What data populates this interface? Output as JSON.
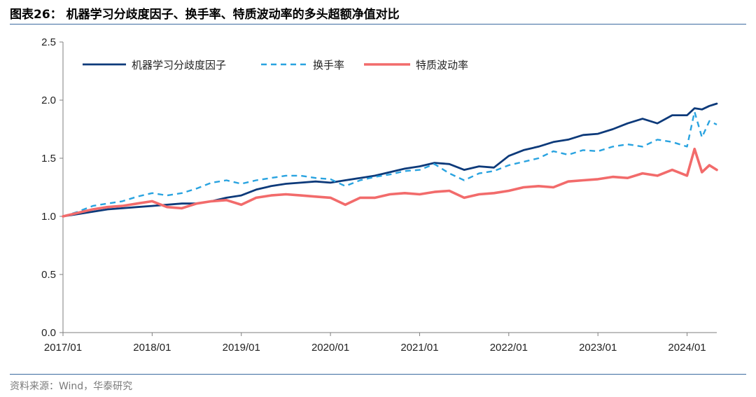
{
  "figure": {
    "title": "图表26： 机器学习分歧度因子、换手率、特质波动率的多头超额净值对比",
    "source": "资料来源：Wind，华泰研究"
  },
  "colors": {
    "series1": "#0d3a7a",
    "series2": "#29a3e0",
    "series3": "#f26b6b",
    "rule": "#3b6aa0"
  },
  "chart_data": {
    "type": "line",
    "title": "",
    "xlabel": "",
    "ylabel": "",
    "ylim": [
      0.0,
      2.5
    ],
    "yticks": [
      "0.0",
      "0.5",
      "1.0",
      "1.5",
      "2.0",
      "2.5"
    ],
    "xticks": [
      "2017/01",
      "2018/01",
      "2019/01",
      "2020/01",
      "2021/01",
      "2022/01",
      "2023/01",
      "2024/01"
    ],
    "x": [
      "2017/01",
      "2017/03",
      "2017/05",
      "2017/07",
      "2017/09",
      "2017/11",
      "2018/01",
      "2018/03",
      "2018/05",
      "2018/07",
      "2018/09",
      "2018/11",
      "2019/01",
      "2019/03",
      "2019/05",
      "2019/07",
      "2019/09",
      "2019/11",
      "2020/01",
      "2020/03",
      "2020/05",
      "2020/07",
      "2020/09",
      "2020/11",
      "2021/01",
      "2021/03",
      "2021/05",
      "2021/07",
      "2021/09",
      "2021/11",
      "2022/01",
      "2022/03",
      "2022/05",
      "2022/07",
      "2022/09",
      "2022/11",
      "2023/01",
      "2023/03",
      "2023/05",
      "2023/07",
      "2023/09",
      "2023/11",
      "2024/01",
      "2024/02",
      "2024/03",
      "2024/04",
      "2024/05"
    ],
    "legend_position": "top-left",
    "series": [
      {
        "name": "机器学习分歧度因子",
        "style": "solid",
        "values": [
          1.0,
          1.02,
          1.04,
          1.06,
          1.07,
          1.08,
          1.09,
          1.1,
          1.11,
          1.11,
          1.13,
          1.16,
          1.18,
          1.23,
          1.26,
          1.28,
          1.29,
          1.3,
          1.29,
          1.31,
          1.33,
          1.35,
          1.38,
          1.41,
          1.43,
          1.46,
          1.45,
          1.4,
          1.43,
          1.42,
          1.52,
          1.57,
          1.6,
          1.64,
          1.66,
          1.7,
          1.71,
          1.75,
          1.8,
          1.84,
          1.8,
          1.87,
          1.87,
          1.93,
          1.92,
          1.95,
          1.97
        ]
      },
      {
        "name": "换手率",
        "style": "dashed",
        "values": [
          1.0,
          1.04,
          1.09,
          1.11,
          1.13,
          1.17,
          1.2,
          1.18,
          1.2,
          1.24,
          1.29,
          1.31,
          1.28,
          1.31,
          1.33,
          1.35,
          1.35,
          1.33,
          1.32,
          1.26,
          1.31,
          1.34,
          1.36,
          1.39,
          1.4,
          1.45,
          1.37,
          1.31,
          1.37,
          1.39,
          1.44,
          1.47,
          1.5,
          1.56,
          1.53,
          1.57,
          1.56,
          1.6,
          1.62,
          1.6,
          1.66,
          1.64,
          1.6,
          1.9,
          1.68,
          1.82,
          1.79
        ]
      },
      {
        "name": "特质波动率",
        "style": "solid",
        "values": [
          1.0,
          1.03,
          1.06,
          1.08,
          1.09,
          1.11,
          1.13,
          1.08,
          1.07,
          1.11,
          1.13,
          1.14,
          1.1,
          1.16,
          1.18,
          1.19,
          1.18,
          1.17,
          1.16,
          1.1,
          1.16,
          1.16,
          1.19,
          1.2,
          1.19,
          1.21,
          1.22,
          1.16,
          1.19,
          1.2,
          1.22,
          1.25,
          1.26,
          1.25,
          1.3,
          1.31,
          1.32,
          1.34,
          1.33,
          1.37,
          1.35,
          1.4,
          1.35,
          1.58,
          1.38,
          1.44,
          1.4
        ]
      }
    ]
  }
}
